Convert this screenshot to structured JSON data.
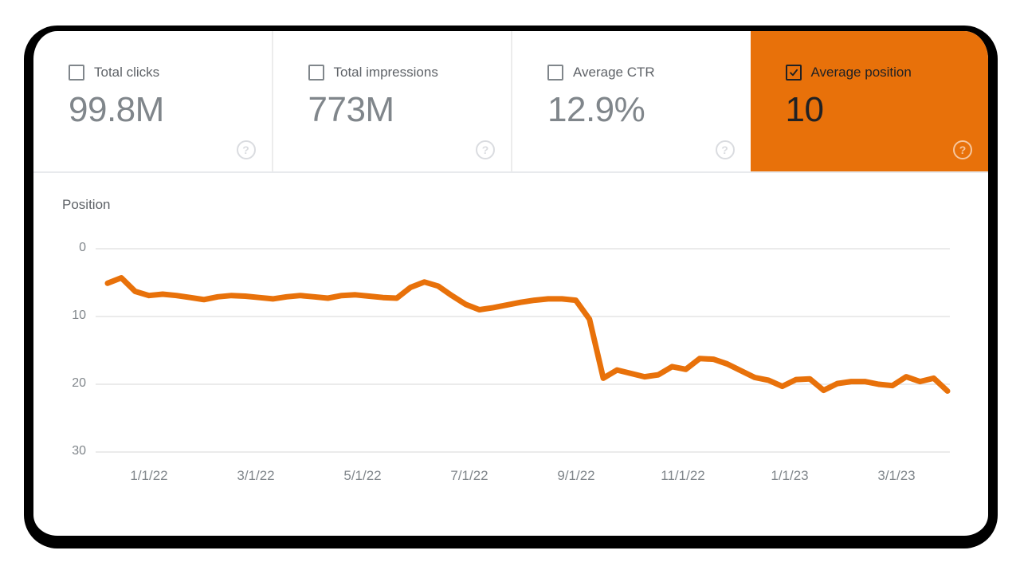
{
  "cards": [
    {
      "label": "Total clicks",
      "value": "99.8M",
      "checked": false
    },
    {
      "label": "Total impressions",
      "value": "773M",
      "checked": false
    },
    {
      "label": "Average CTR",
      "value": "12.9%",
      "checked": false
    },
    {
      "label": "Average position",
      "value": "10",
      "checked": true
    }
  ],
  "icons": {
    "help": "?"
  },
  "colors": {
    "accent_orange": "#E8710A",
    "value_gray": "#80868B",
    "label_gray": "#5F6368",
    "dark_text": "#202124",
    "gridline": "#EBEBEB",
    "frame_border": "#000000"
  },
  "chart_data": {
    "type": "line",
    "title": "Position",
    "y_axis_inverted": true,
    "ylim": [
      0,
      30
    ],
    "y_ticks": [
      "0",
      "10",
      "20",
      "30"
    ],
    "x_tick_labels": [
      "1/1/22",
      "3/1/22",
      "5/1/22",
      "7/1/22",
      "9/1/22",
      "11/1/22",
      "1/1/23",
      "3/1/23"
    ],
    "grid": true,
    "legend": "none",
    "series": [
      {
        "name": "Average position",
        "color": "#E8710A",
        "interval": "weekly",
        "values": [
          5.1,
          4.3,
          6.3,
          6.9,
          6.7,
          6.9,
          7.2,
          7.5,
          7.1,
          6.9,
          7.0,
          7.2,
          7.4,
          7.1,
          6.9,
          7.1,
          7.3,
          6.9,
          6.8,
          7.0,
          7.2,
          7.3,
          5.7,
          4.9,
          5.5,
          6.9,
          8.2,
          9.0,
          8.7,
          8.3,
          7.9,
          7.6,
          7.4,
          7.4,
          7.6,
          10.4,
          19.1,
          17.9,
          18.4,
          18.9,
          18.6,
          17.4,
          17.8,
          16.2,
          16.3,
          17.0,
          18.0,
          19.0,
          19.4,
          20.3,
          19.3,
          19.2,
          20.9,
          19.9,
          19.6,
          19.6,
          20.0,
          20.2,
          18.9,
          19.6,
          19.1,
          21.0
        ]
      }
    ]
  }
}
